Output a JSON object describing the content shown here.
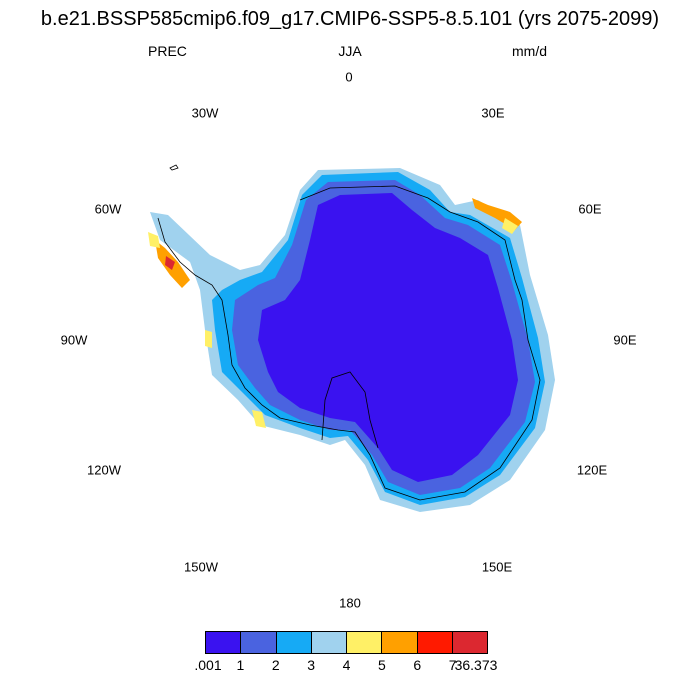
{
  "title": "b.e21.BSSP585cmip6.f09_g17.CMIP6-SSP5-8.5.101 (yrs 2075-2099)",
  "variable": "PREC",
  "season": "JJA",
  "units": "mm/d",
  "longitude_labels": [
    "0",
    "30E",
    "60E",
    "90E",
    "120E",
    "150E",
    "180",
    "150W",
    "120W",
    "90W",
    "60W",
    "30W"
  ],
  "colorbar": {
    "colors": [
      "#3a12f0",
      "#4a63e0",
      "#16aaf5",
      "#a0d2ee",
      "#fff066",
      "#ffa000",
      "#ff1a00",
      "#dc2830"
    ],
    "labels": [
      ".001",
      "1",
      "2",
      "3",
      "4",
      "5",
      "6",
      "7",
      "36.373"
    ]
  }
}
